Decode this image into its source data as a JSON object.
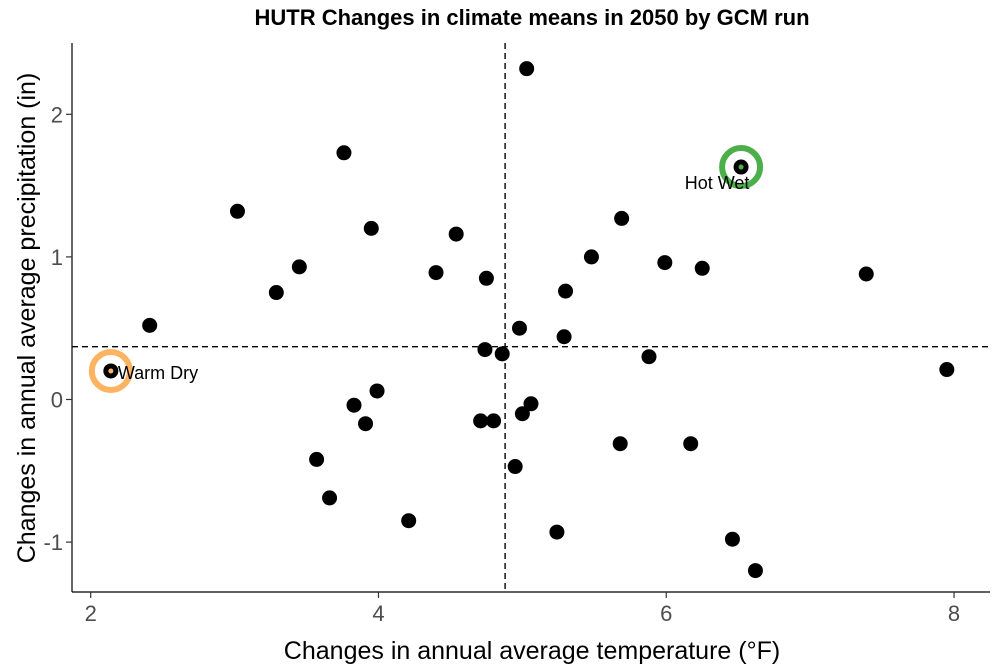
{
  "chart_data": {
    "type": "scatter",
    "title": "HUTR Changes in climate means in 2050 by GCM run",
    "xlabel": "Changes in annual average temperature (°F)",
    "ylabel": "Changes in annual average precipitation (in)",
    "xlim": [
      1.87,
      8.25
    ],
    "ylim": [
      -1.35,
      2.5
    ],
    "xticks": [
      2,
      4,
      6,
      8
    ],
    "yticks": [
      -1,
      0,
      1,
      2
    ],
    "xtick_labels": [
      "2",
      "4",
      "6",
      "8"
    ],
    "ytick_labels": [
      "-1",
      "0",
      "1",
      "2"
    ],
    "grid": false,
    "ref_lines": {
      "x": 4.88,
      "y": 0.37
    },
    "points": [
      [
        2.14,
        0.2
      ],
      [
        2.41,
        0.52
      ],
      [
        3.02,
        1.32
      ],
      [
        3.29,
        0.75
      ],
      [
        3.45,
        0.93
      ],
      [
        3.57,
        -0.42
      ],
      [
        3.66,
        -0.69
      ],
      [
        3.76,
        1.73
      ],
      [
        3.83,
        -0.04
      ],
      [
        3.91,
        -0.17
      ],
      [
        3.95,
        1.2
      ],
      [
        3.99,
        0.06
      ],
      [
        4.21,
        -0.85
      ],
      [
        4.4,
        0.89
      ],
      [
        4.54,
        1.16
      ],
      [
        4.71,
        -0.15
      ],
      [
        4.74,
        0.35
      ],
      [
        4.75,
        0.85
      ],
      [
        4.8,
        -0.15
      ],
      [
        4.86,
        0.32
      ],
      [
        4.95,
        -0.47
      ],
      [
        4.98,
        0.5
      ],
      [
        5.0,
        -0.1
      ],
      [
        5.03,
        2.32
      ],
      [
        5.06,
        -0.03
      ],
      [
        5.24,
        -0.93
      ],
      [
        5.29,
        0.44
      ],
      [
        5.3,
        0.76
      ],
      [
        5.48,
        1.0
      ],
      [
        5.68,
        -0.31
      ],
      [
        5.69,
        1.27
      ],
      [
        5.88,
        0.3
      ],
      [
        5.99,
        0.96
      ],
      [
        6.17,
        -0.31
      ],
      [
        6.25,
        0.92
      ],
      [
        6.46,
        -0.98
      ],
      [
        6.52,
        1.63
      ],
      [
        6.62,
        -1.2
      ],
      [
        7.39,
        0.88
      ],
      [
        7.95,
        0.21
      ]
    ],
    "annotations": [
      {
        "label": "Hot Wet",
        "x": 6.52,
        "y": 1.63,
        "color": "#4daf4a"
      },
      {
        "label": "Warm Dry",
        "x": 2.14,
        "y": 0.2,
        "color": "#fdb462"
      }
    ]
  }
}
